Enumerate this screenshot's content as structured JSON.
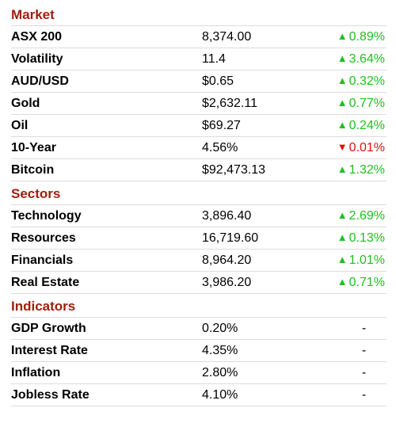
{
  "market": {
    "title": "Market",
    "rows": [
      {
        "name": "ASX 200",
        "value": "8,374.00",
        "dir": "up",
        "arrow": "▲",
        "change": "0.89%"
      },
      {
        "name": "Volatility",
        "value": "11.4",
        "dir": "up",
        "arrow": "▲",
        "change": "3.64%"
      },
      {
        "name": "AUD/USD",
        "value": "$0.65",
        "dir": "up",
        "arrow": "▲",
        "change": "0.32%"
      },
      {
        "name": "Gold",
        "value": "$2,632.11",
        "dir": "up",
        "arrow": "▲",
        "change": "0.77%"
      },
      {
        "name": "Oil",
        "value": "$69.27",
        "dir": "up",
        "arrow": "▲",
        "change": "0.24%"
      },
      {
        "name": "10-Year",
        "value": "4.56%",
        "dir": "down",
        "arrow": "▼",
        "change": "0.01%"
      },
      {
        "name": "Bitcoin",
        "value": "$92,473.13",
        "dir": "up",
        "arrow": "▲",
        "change": "1.32%"
      }
    ]
  },
  "sectors": {
    "title": "Sectors",
    "rows": [
      {
        "name": "Technology",
        "value": "3,896.40",
        "dir": "up",
        "arrow": "▲",
        "change": "2.69%"
      },
      {
        "name": "Resources",
        "value": "16,719.60",
        "dir": "up",
        "arrow": "▲",
        "change": "0.13%"
      },
      {
        "name": "Financials",
        "value": "8,964.20",
        "dir": "up",
        "arrow": "▲",
        "change": "1.01%"
      },
      {
        "name": "Real Estate",
        "value": "3,986.20",
        "dir": "up",
        "arrow": "▲",
        "change": "0.71%"
      }
    ]
  },
  "indicators": {
    "title": "Indicators",
    "rows": [
      {
        "name": "GDP Growth",
        "value": "0.20%",
        "change": "-"
      },
      {
        "name": "Interest Rate",
        "value": "4.35%",
        "change": "-"
      },
      {
        "name": "Inflation",
        "value": "2.80%",
        "change": "-"
      },
      {
        "name": "Jobless Rate",
        "value": "4.10%",
        "change": "-"
      }
    ]
  },
  "colors": {
    "section_title": "#a01e10",
    "up": "#20c020",
    "down": "#e01010",
    "divider": "#dcdcdc"
  }
}
